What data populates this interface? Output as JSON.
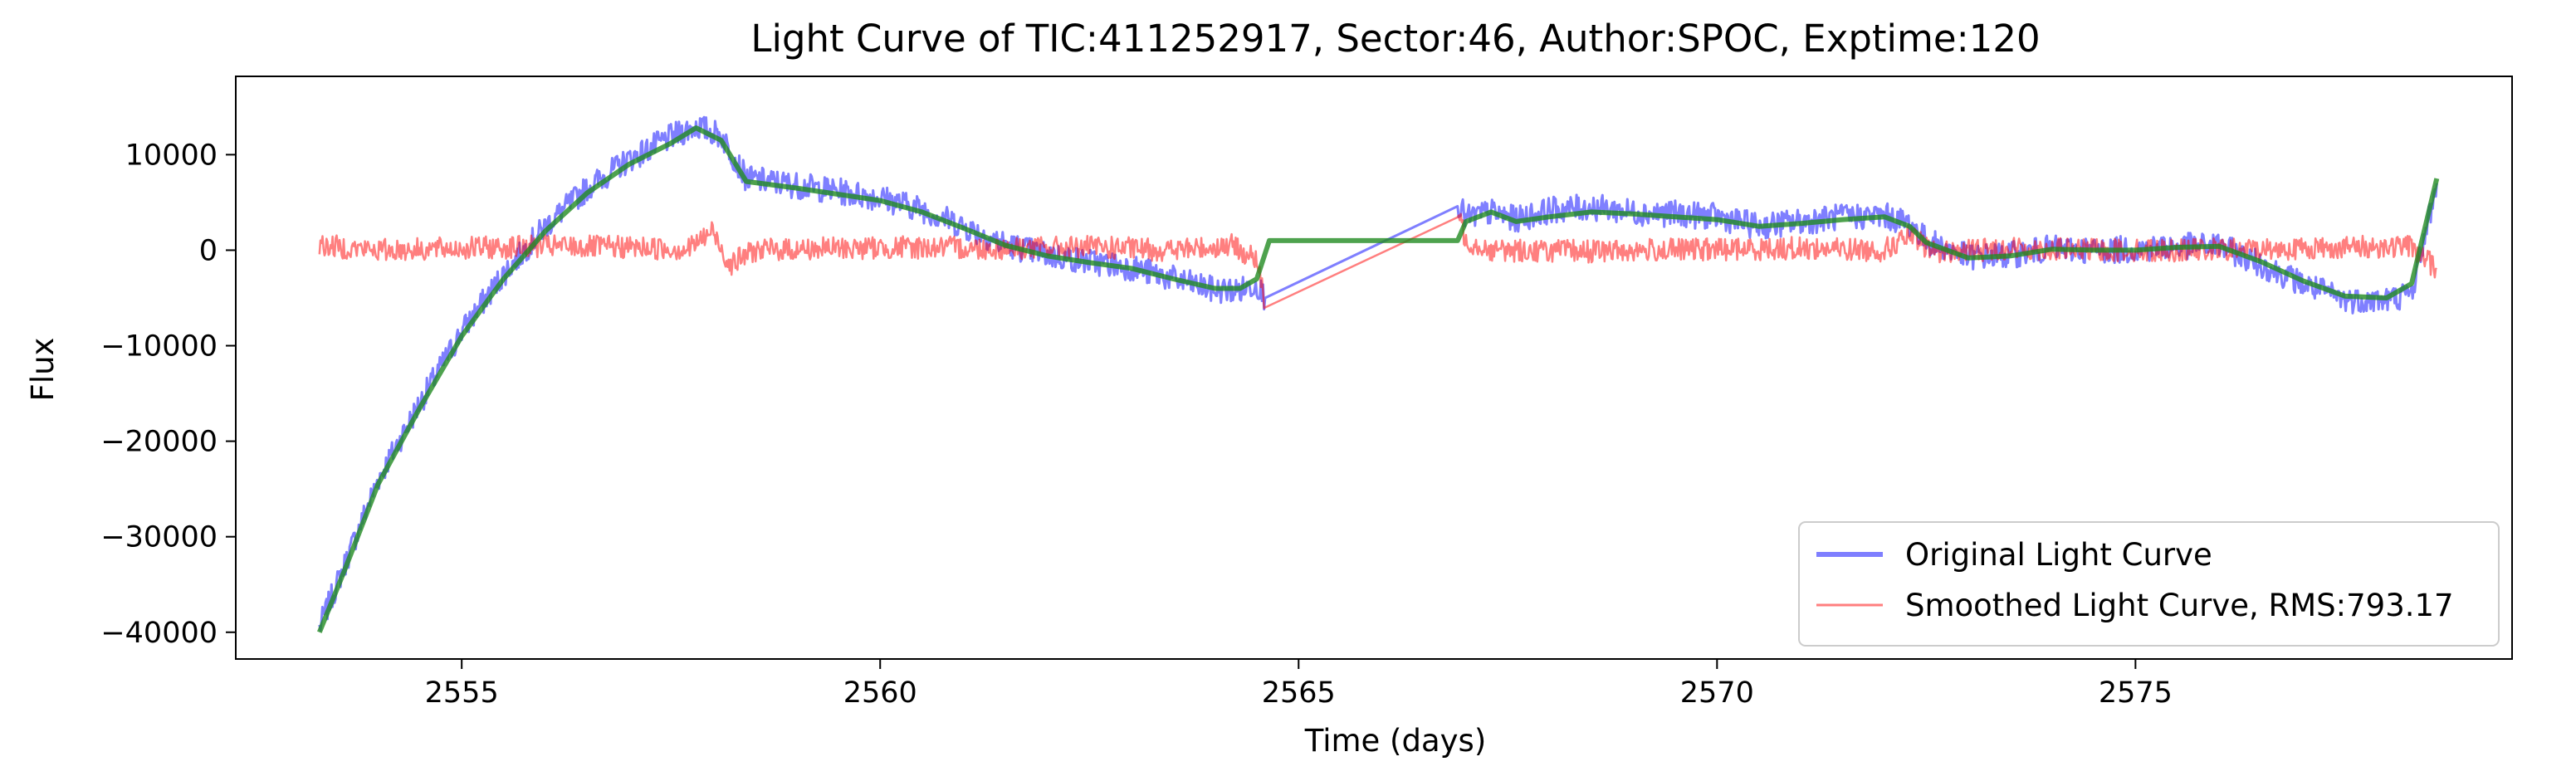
{
  "chart_data": {
    "type": "line",
    "title": "Light Curve of TIC:411252917, Sector:46, Author:SPOC, Exptime:120",
    "xlabel": "Time (days)",
    "ylabel": "Flux",
    "xlim": [
      2552.3,
      2579.5
    ],
    "ylim": [
      -42800,
      18200
    ],
    "xticks": [
      2555,
      2560,
      2565,
      2570,
      2575
    ],
    "yticks": [
      10000,
      0,
      -10000,
      -20000,
      -30000,
      -40000
    ],
    "ytick_labels": [
      "10000",
      "0",
      "−10000",
      "−20000",
      "−30000",
      "−40000"
    ],
    "grid": false,
    "legend_position": "lower-right",
    "series": [
      {
        "name": "Original Light Curve",
        "color": "#0000ff",
        "x": [
          2553.3,
          2553.6,
          2554.0,
          2554.5,
          2555.0,
          2555.5,
          2556.0,
          2556.5,
          2557.0,
          2557.5,
          2557.8,
          2558.1,
          2558.4,
          2559.0,
          2560.0,
          2560.5,
          2561.0,
          2561.5,
          2562.0,
          2562.5,
          2563.0,
          2563.5,
          2564.0,
          2564.3,
          2564.5,
          2564.6,
          2566.9,
          2567.0,
          2567.3,
          2567.6,
          2568.0,
          2568.5,
          2569.0,
          2569.5,
          2570.0,
          2570.5,
          2571.0,
          2571.5,
          2572.0,
          2572.3,
          2572.5,
          2573.0,
          2573.5,
          2574.0,
          2574.5,
          2575.0,
          2575.5,
          2576.0,
          2576.5,
          2577.0,
          2577.5,
          2578.0,
          2578.3,
          2578.6
        ],
        "y": [
          -39500,
          -33000,
          -24000,
          -16000,
          -8500,
          -2500,
          2500,
          6500,
          9500,
          11800,
          13000,
          12000,
          7500,
          6800,
          5500,
          4300,
          2500,
          600,
          -500,
          -1200,
          -1800,
          -3000,
          -4200,
          -4200,
          -3500,
          -5000,
          5000,
          3300,
          4000,
          3200,
          4200,
          4500,
          4000,
          3800,
          3500,
          2500,
          3000,
          3500,
          3600,
          2800,
          1000,
          -700,
          -500,
          200,
          0,
          100,
          400,
          500,
          -1500,
          -3500,
          -5200,
          -5200,
          -4500,
          7000
        ]
      },
      {
        "name": "Smoothed Light Curve, RMS:793.17",
        "color": "#ff0000",
        "x": [
          2553.3,
          2554.0,
          2555.0,
          2556.0,
          2557.0,
          2557.7,
          2558.0,
          2558.2,
          2558.5,
          2559.5,
          2560.5,
          2561.5,
          2562.5,
          2563.5,
          2564.2,
          2564.5,
          2564.6,
          2566.9,
          2567.0,
          2567.3,
          2568.5,
          2570.0,
          2571.0,
          2572.0,
          2572.3,
          2572.6,
          2573.5,
          2574.5,
          2575.5,
          2576.5,
          2577.5,
          2578.3,
          2578.6
        ],
        "y": [
          500,
          0,
          200,
          400,
          300,
          100,
          2000,
          -1500,
          0,
          200,
          300,
          200,
          300,
          0,
          500,
          -1000,
          -6000,
          4000,
          1000,
          0,
          -100,
          100,
          200,
          0,
          1500,
          -200,
          200,
          0,
          0,
          100,
          300,
          400,
          -2000
        ]
      }
    ],
    "trend_line": {
      "color": "#228b22",
      "x": [
        2553.3,
        2553.6,
        2554.0,
        2554.5,
        2555.0,
        2555.5,
        2556.0,
        2556.5,
        2557.0,
        2557.5,
        2557.8,
        2558.1,
        2558.4,
        2559.0,
        2560.0,
        2560.5,
        2561.0,
        2561.5,
        2562.0,
        2562.5,
        2563.0,
        2563.5,
        2564.0,
        2564.3,
        2564.5,
        2564.65,
        2566.9,
        2567.0,
        2567.3,
        2567.6,
        2568.0,
        2568.5,
        2569.0,
        2569.5,
        2570.0,
        2570.5,
        2571.0,
        2571.5,
        2572.0,
        2572.3,
        2572.5,
        2573.0,
        2573.5,
        2574.0,
        2574.5,
        2575.0,
        2575.5,
        2576.0,
        2576.5,
        2577.0,
        2577.5,
        2578.0,
        2578.3,
        2578.6
      ],
      "y": [
        -40000,
        -33500,
        -24500,
        -16500,
        -9000,
        -3000,
        2000,
        6000,
        9000,
        11200,
        12800,
        11500,
        7200,
        6500,
        5200,
        4000,
        2300,
        500,
        -600,
        -1300,
        -1900,
        -3000,
        -4000,
        -4000,
        -3000,
        1000,
        1000,
        3000,
        4000,
        3000,
        3500,
        4000,
        3800,
        3500,
        3200,
        2500,
        2800,
        3200,
        3500,
        2500,
        800,
        -800,
        -600,
        100,
        0,
        0,
        300,
        400,
        -1200,
        -3200,
        -4800,
        -5000,
        -3500,
        7500
      ]
    }
  }
}
